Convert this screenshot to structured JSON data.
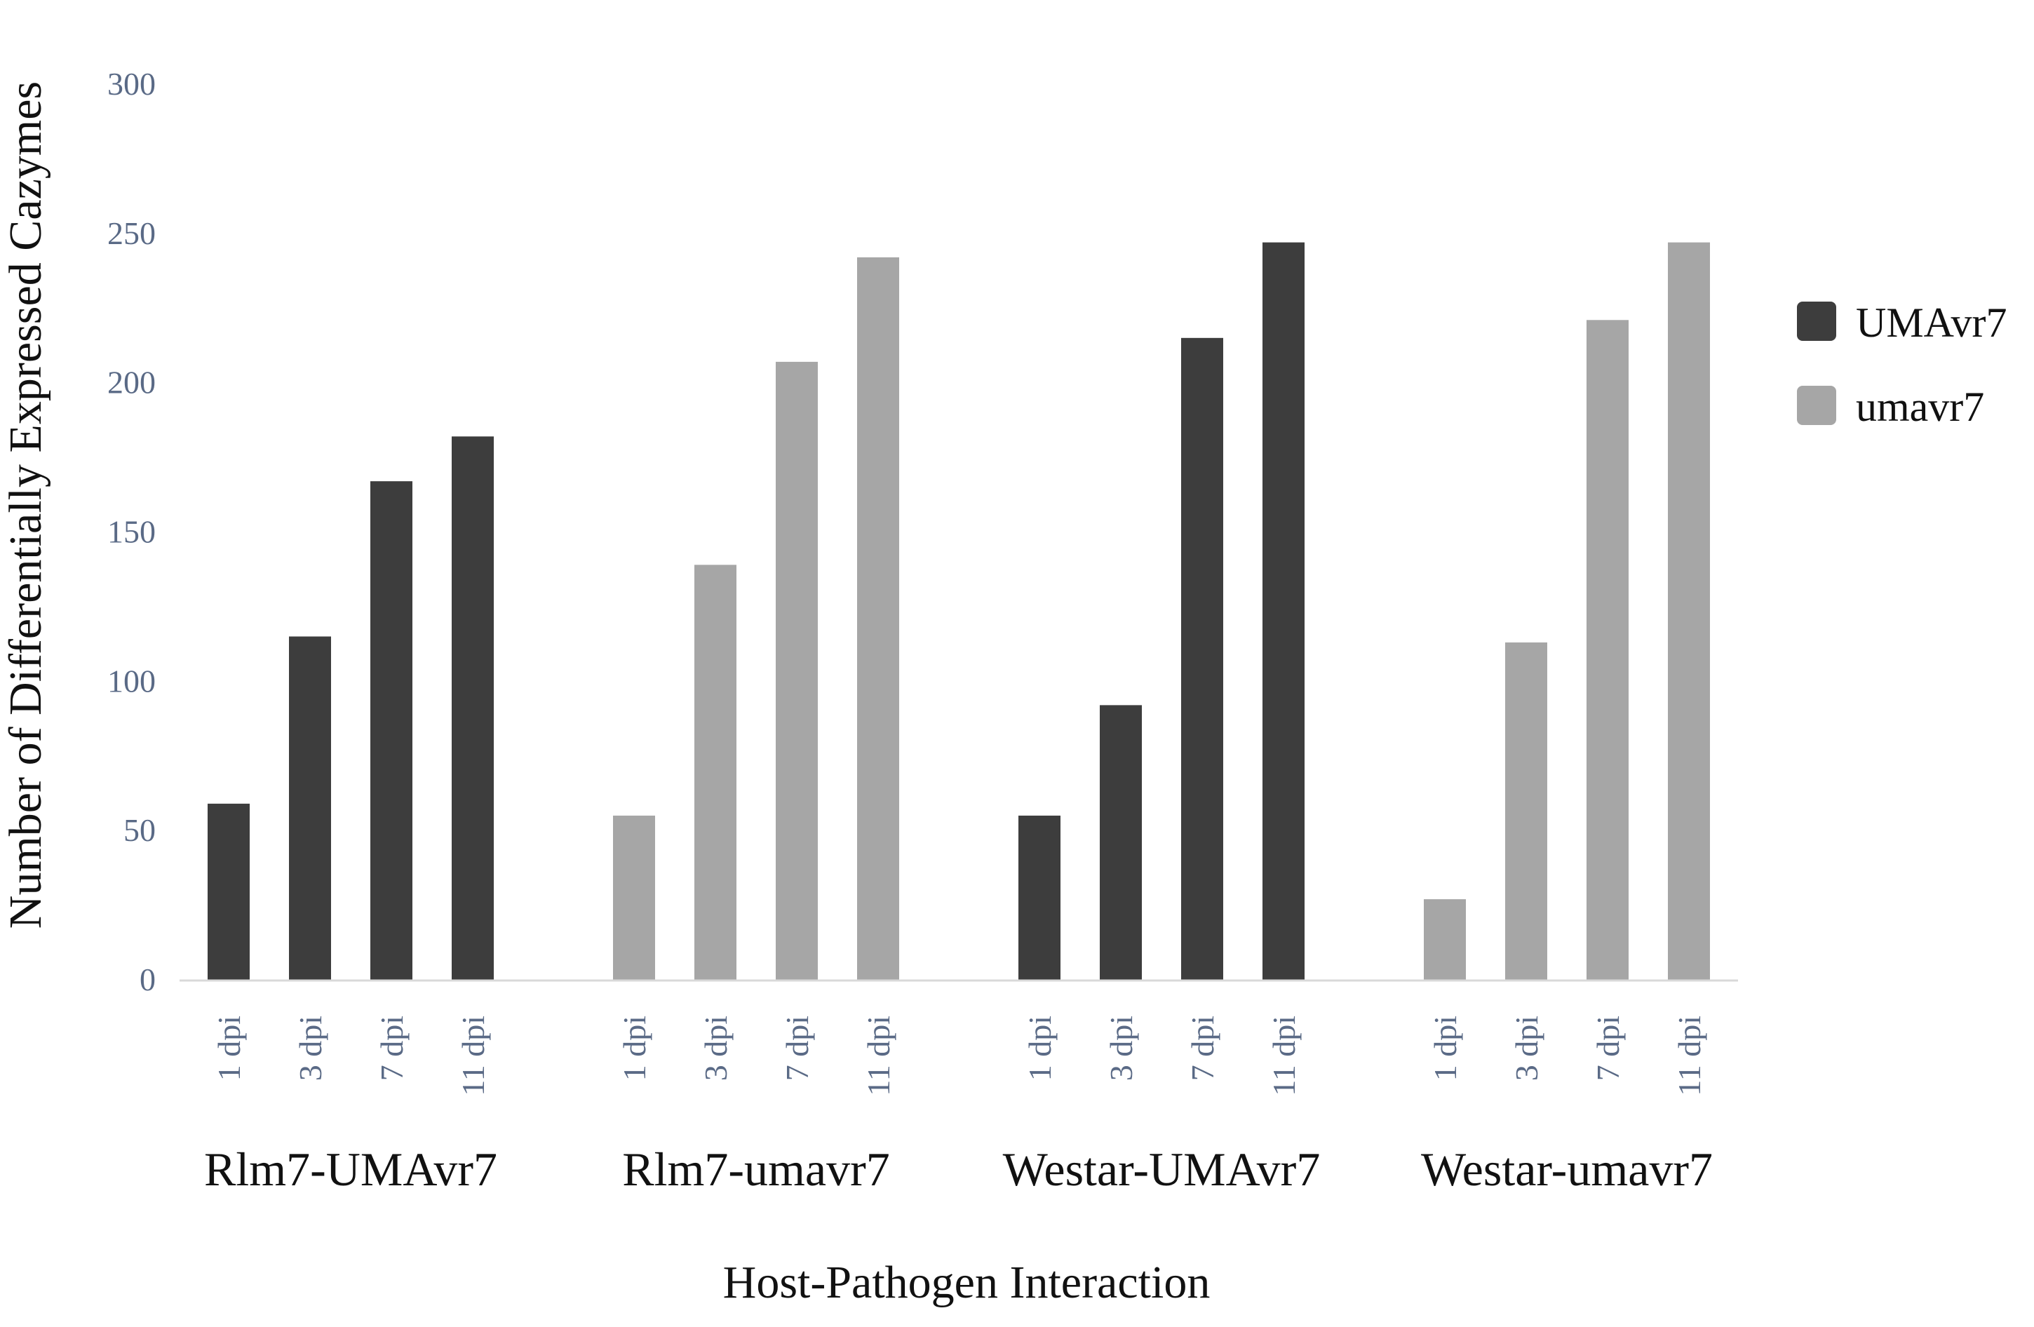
{
  "chart_data": {
    "type": "bar",
    "title": "",
    "xlabel": "Host-Pathogen Interaction",
    "ylabel": "Number of Differentially Expressed Cazymes",
    "ylim": [
      0,
      300
    ],
    "yticks": [
      0,
      50,
      100,
      150,
      200,
      250,
      300
    ],
    "grid": false,
    "legend_position": "right",
    "groups": [
      {
        "name": "Rlm7-UMAvr7",
        "series": "UMAvr7",
        "categories": [
          "1 dpi",
          "3 dpi",
          "7 dpi",
          "11 dpi"
        ],
        "values": [
          59,
          115,
          167,
          182
        ]
      },
      {
        "name": "Rlm7-umavr7",
        "series": "umavr7",
        "categories": [
          "1 dpi",
          "3 dpi",
          "7 dpi",
          "11 dpi"
        ],
        "values": [
          55,
          139,
          207,
          242
        ]
      },
      {
        "name": "Westar-UMAvr7",
        "series": "UMAvr7",
        "categories": [
          "1 dpi",
          "3 dpi",
          "7 dpi",
          "11 dpi"
        ],
        "values": [
          55,
          92,
          215,
          247
        ]
      },
      {
        "name": "Westar-umavr7",
        "series": "umavr7",
        "categories": [
          "1 dpi",
          "3 dpi",
          "7 dpi",
          "11 dpi"
        ],
        "values": [
          27,
          113,
          221,
          247
        ]
      }
    ],
    "legend": [
      {
        "name": "UMAvr7",
        "color": "#3d3d3d"
      },
      {
        "name": "umavr7",
        "color": "#a6a6a6"
      }
    ]
  }
}
